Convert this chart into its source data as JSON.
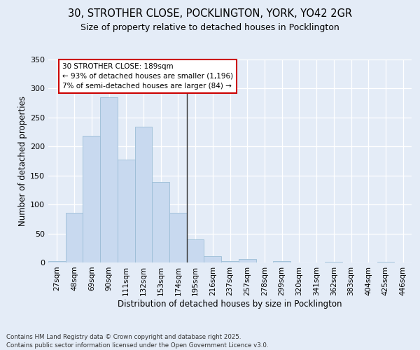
{
  "title_line1": "30, STROTHER CLOSE, POCKLINGTON, YORK, YO42 2GR",
  "title_line2": "Size of property relative to detached houses in Pocklington",
  "xlabel": "Distribution of detached houses by size in Pocklington",
  "ylabel": "Number of detached properties",
  "categories": [
    "27sqm",
    "48sqm",
    "69sqm",
    "90sqm",
    "111sqm",
    "132sqm",
    "153sqm",
    "174sqm",
    "195sqm",
    "216sqm",
    "237sqm",
    "257sqm",
    "278sqm",
    "299sqm",
    "320sqm",
    "341sqm",
    "362sqm",
    "383sqm",
    "404sqm",
    "425sqm",
    "446sqm"
  ],
  "values": [
    2,
    86,
    218,
    285,
    177,
    234,
    139,
    86,
    40,
    11,
    3,
    6,
    0,
    3,
    0,
    0,
    1,
    0,
    0,
    1,
    0
  ],
  "bar_color": "#c8d9ef",
  "bar_edge_color": "#9bbdd6",
  "vline_color": "#333333",
  "annotation_text": "30 STROTHER CLOSE: 189sqm\n← 93% of detached houses are smaller (1,196)\n7% of semi-detached houses are larger (84) →",
  "annotation_box_facecolor": "#ffffff",
  "annotation_box_edgecolor": "#cc0000",
  "ylim_max": 350,
  "yticks": [
    0,
    50,
    100,
    150,
    200,
    250,
    300,
    350
  ],
  "background_color": "#e4ecf7",
  "grid_color": "#ffffff",
  "footnote": "Contains HM Land Registry data © Crown copyright and database right 2025.\nContains public sector information licensed under the Open Government Licence v3.0."
}
